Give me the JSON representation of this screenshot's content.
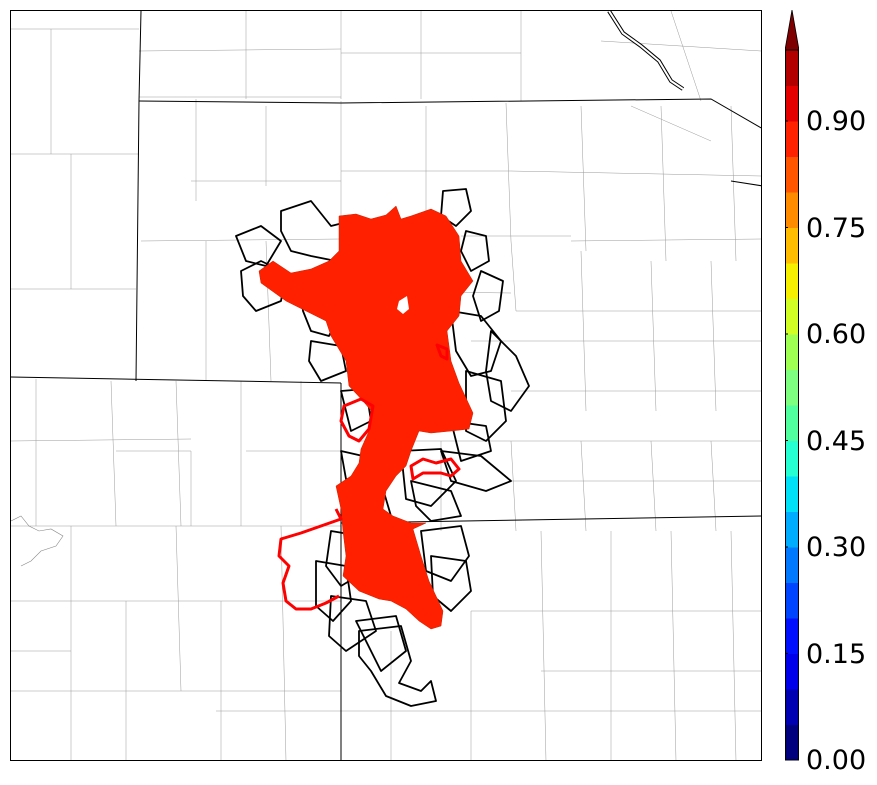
{
  "colorbar": {
    "tick_labels": [
      "0.00",
      "0.15",
      "0.30",
      "0.45",
      "0.60",
      "0.75",
      "0.90"
    ],
    "tick_values": [
      0.0,
      0.15,
      0.3,
      0.45,
      0.6,
      0.75,
      0.9
    ],
    "vmin": 0.0,
    "vmax": 1.0,
    "extend": "max",
    "levels": 20,
    "colors": [
      "#00007f",
      "#0000b2",
      "#0000ea",
      "#0010ff",
      "#0044ff",
      "#0078ff",
      "#00acff",
      "#00e0f6",
      "#25ffd1",
      "#52ff9f",
      "#7fff7f",
      "#9fff52",
      "#d1ff25",
      "#f6f000",
      "#ffbc00",
      "#ff8c00",
      "#ff5500",
      "#ff2200",
      "#e50000",
      "#b20000"
    ],
    "extend_color": "#7f0000"
  },
  "map": {
    "probability_fill_color": "#ff2000",
    "observed_outline_color": "#ff0000",
    "member_outline_color": "#000000"
  }
}
